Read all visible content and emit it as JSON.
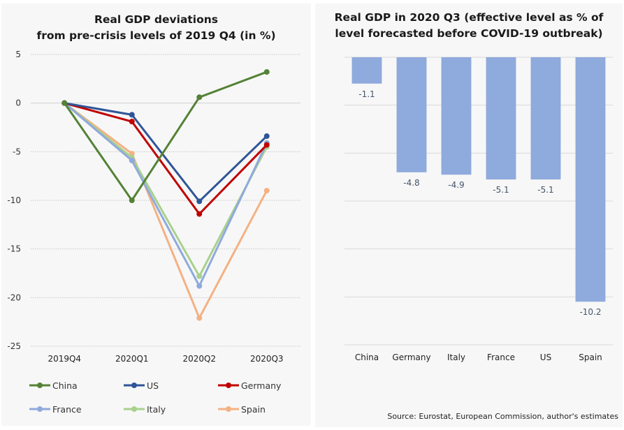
{
  "chart_data": [
    {
      "type": "line",
      "title": "Real GDP deviations\nfrom pre-crisis levels of 2019 Q4 (in %)",
      "title_lines": [
        "Real GDP deviations",
        "from pre-crisis levels of 2019 Q4 (in %)"
      ],
      "xlabel": "",
      "ylabel": "",
      "x": [
        "2019Q4",
        "2020Q1",
        "2020Q2",
        "2020Q3"
      ],
      "ylim": [
        -25,
        5
      ],
      "yticks": [
        5,
        0,
        -5,
        -10,
        -15,
        -20,
        -25
      ],
      "grid": true,
      "legend": "bottom",
      "series": [
        {
          "name": "China",
          "color": "#548235",
          "values": [
            0,
            -10.0,
            0.6,
            3.2
          ]
        },
        {
          "name": "US",
          "color": "#2f5597",
          "values": [
            0,
            -1.2,
            -10.1,
            -3.4
          ]
        },
        {
          "name": "Germany",
          "color": "#c00000",
          "values": [
            0,
            -1.9,
            -11.4,
            -4.3
          ]
        },
        {
          "name": "France",
          "color": "#8faadc",
          "values": [
            0,
            -5.9,
            -18.8,
            -4.1
          ]
        },
        {
          "name": "Italy",
          "color": "#a9d18e",
          "values": [
            0,
            -5.6,
            -17.8,
            -4.5
          ]
        },
        {
          "name": "Spain",
          "color": "#f4b183",
          "values": [
            0,
            -5.2,
            -22.1,
            -9.0
          ]
        }
      ]
    },
    {
      "type": "bar",
      "title": "Real GDP in 2020 Q3 (effective level as % of\nlevel forecasted before COVID-19 outbreak)",
      "title_lines": [
        "Real GDP in 2020 Q3 (effective level as % of",
        "level forecasted before COVID-19 outbreak)"
      ],
      "xlabel": "",
      "ylabel": "",
      "categories": [
        "China",
        "Germany",
        "Italy",
        "France",
        "US",
        "Spain"
      ],
      "values": [
        -1.1,
        -4.8,
        -4.9,
        -5.1,
        -5.1,
        -10.2
      ],
      "value_labels": [
        "-1.1",
        "-4.8",
        "-4.9",
        "-5.1",
        "-5.1",
        "-10.2"
      ],
      "ylim": [
        -12,
        0
      ],
      "gridlines": [
        0,
        -2,
        -4,
        -6,
        -8,
        -10,
        -12
      ],
      "grid": true,
      "bar_color": "#8faadc",
      "label_color": "#44546a"
    }
  ],
  "source": "Source: Eurostat, European Commission, author's estimates"
}
